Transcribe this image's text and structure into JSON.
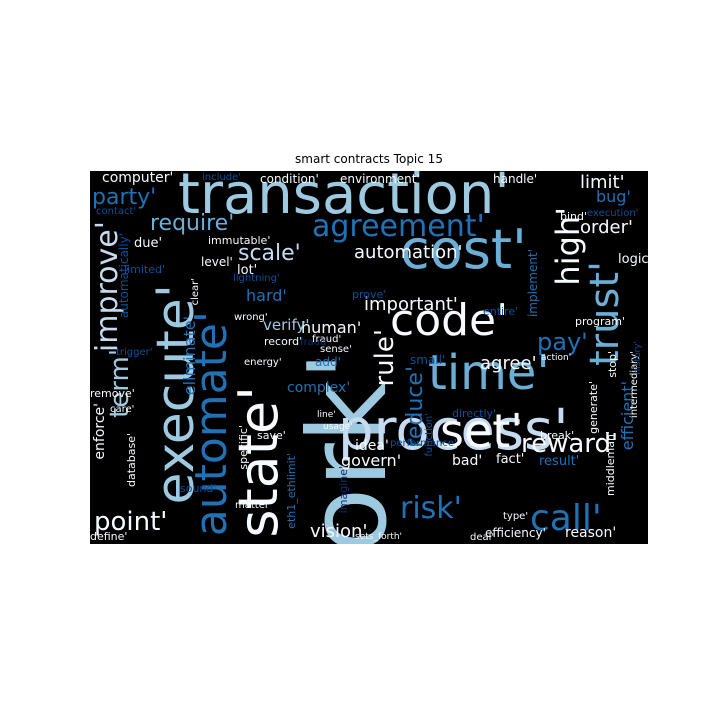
{
  "figure": {
    "title": "smart contracts Topic 15"
  },
  "palette": {
    "background": "#000000",
    "white": "#f7fbff",
    "pale": "#c6dbef",
    "light": "#9ecae1",
    "sky": "#6baed6",
    "mid": "#4292c6",
    "blue": "#2171b5",
    "dark": "#08519c",
    "navy": "#08306b"
  },
  "words": [
    {
      "text": "work'",
      "color": "light"
    },
    {
      "text": "transaction'",
      "color": "light"
    },
    {
      "text": "process'",
      "color": "pale"
    },
    {
      "text": "cost'",
      "color": "sky"
    },
    {
      "text": "code'",
      "color": "white"
    },
    {
      "text": "state'",
      "color": "white"
    },
    {
      "text": "time'",
      "color": "sky"
    },
    {
      "text": "set'",
      "color": "white"
    },
    {
      "text": "automate'",
      "color": "blue"
    },
    {
      "text": "execute'",
      "color": "light"
    },
    {
      "text": "trust'",
      "color": "sky"
    },
    {
      "text": "agreement'",
      "color": "blue"
    },
    {
      "text": "call'",
      "color": "blue"
    },
    {
      "text": "risk'",
      "color": "blue"
    },
    {
      "text": "high'",
      "color": "white"
    },
    {
      "text": "improve'",
      "color": "pale"
    },
    {
      "text": "term'",
      "color": "light"
    },
    {
      "text": "point'",
      "color": "white"
    },
    {
      "text": "reward'",
      "color": "white"
    },
    {
      "text": "rule'",
      "color": "white"
    },
    {
      "text": "scale'",
      "color": "pale"
    },
    {
      "text": "require'",
      "color": "sky"
    },
    {
      "text": "party'",
      "color": "blue"
    },
    {
      "text": "automation'",
      "color": "white"
    },
    {
      "text": "limit'",
      "color": "white"
    },
    {
      "text": "reduce'",
      "color": "blue"
    },
    {
      "text": "order'",
      "color": "white"
    },
    {
      "text": "pay'",
      "color": "blue"
    },
    {
      "text": "vision'",
      "color": "white"
    },
    {
      "text": "agree'",
      "color": "white"
    },
    {
      "text": "important'",
      "color": "white"
    },
    {
      "text": "human'",
      "color": "white"
    },
    {
      "text": "eliminate'",
      "color": "blue"
    },
    {
      "text": "enforce'",
      "color": "white"
    },
    {
      "text": "hard'",
      "color": "blue"
    },
    {
      "text": "bug'",
      "color": "blue"
    },
    {
      "text": "govern'",
      "color": "white"
    },
    {
      "text": "verify'",
      "color": "light"
    },
    {
      "text": "computer'",
      "color": "white"
    },
    {
      "text": "complex'",
      "color": "blue"
    },
    {
      "text": "efficient'",
      "color": "blue"
    },
    {
      "text": "implement'",
      "color": "blue"
    },
    {
      "text": "reason'",
      "color": "white"
    },
    {
      "text": "fact'",
      "color": "white"
    },
    {
      "text": "result'",
      "color": "blue"
    },
    {
      "text": "logic'",
      "color": "white"
    },
    {
      "text": "idea'",
      "color": "white"
    },
    {
      "text": "bad'",
      "color": "white"
    },
    {
      "text": "due'",
      "color": "white"
    },
    {
      "text": "lot'",
      "color": "white"
    },
    {
      "text": "level'",
      "color": "white"
    },
    {
      "text": "environment'",
      "color": "white"
    },
    {
      "text": "condition'",
      "color": "white"
    },
    {
      "text": "handle'",
      "color": "white"
    },
    {
      "text": "automatically'",
      "color": "dark"
    },
    {
      "text": "immutable'",
      "color": "white"
    },
    {
      "text": "efficiency'",
      "color": "white"
    },
    {
      "text": "small'",
      "color": "dark"
    },
    {
      "text": "directly'",
      "color": "dark"
    },
    {
      "text": "save'",
      "color": "white"
    },
    {
      "text": "database'",
      "color": "white"
    },
    {
      "text": "sound'",
      "color": "dark"
    },
    {
      "text": "remove'",
      "color": "white"
    },
    {
      "text": "type'",
      "color": "white"
    },
    {
      "text": "deal'",
      "color": "white"
    },
    {
      "text": "define'",
      "color": "white"
    },
    {
      "text": "matter'",
      "color": "white"
    },
    {
      "text": "break'",
      "color": "white"
    },
    {
      "text": "stop'",
      "color": "white"
    },
    {
      "text": "program'",
      "color": "white"
    },
    {
      "text": "generate'",
      "color": "white"
    },
    {
      "text": "entire'",
      "color": "dark"
    },
    {
      "text": "prove'",
      "color": "dark"
    },
    {
      "text": "add'",
      "color": "blue"
    },
    {
      "text": "sense'",
      "color": "white"
    },
    {
      "text": "fraud'",
      "color": "white"
    },
    {
      "text": "record'",
      "color": "white"
    },
    {
      "text": "energy'",
      "color": "white"
    },
    {
      "text": "wrong'",
      "color": "white"
    },
    {
      "text": "lightning'",
      "color": "dark"
    },
    {
      "text": "limited'",
      "color": "dark"
    },
    {
      "text": "contact'",
      "color": "dark"
    },
    {
      "text": "include'",
      "color": "dark"
    },
    {
      "text": "bind'",
      "color": "white"
    },
    {
      "text": "execution'",
      "color": "dark"
    },
    {
      "text": "clear'",
      "color": "white"
    },
    {
      "text": "trigger'",
      "color": "dark"
    },
    {
      "text": "care'",
      "color": "white"
    },
    {
      "text": "specific'",
      "color": "white"
    },
    {
      "text": "performance'",
      "color": "dark"
    },
    {
      "text": "line'",
      "color": "white"
    },
    {
      "text": "usage'",
      "color": "white"
    },
    {
      "text": "function'",
      "color": "dark"
    },
    {
      "text": "action'",
      "color": "white"
    },
    {
      "text": "middleman'",
      "color": "white"
    },
    {
      "text": "intermediary'",
      "color": "white"
    },
    {
      "text": "history'",
      "color": "dark"
    },
    {
      "text": "eth1_ethlimit'",
      "color": "blue"
    },
    {
      "text": "sets_forth'",
      "color": "white"
    },
    {
      "text": "imagine'",
      "color": "navy"
    },
    {
      "text": "fraud'",
      "color": "navy"
    }
  ]
}
